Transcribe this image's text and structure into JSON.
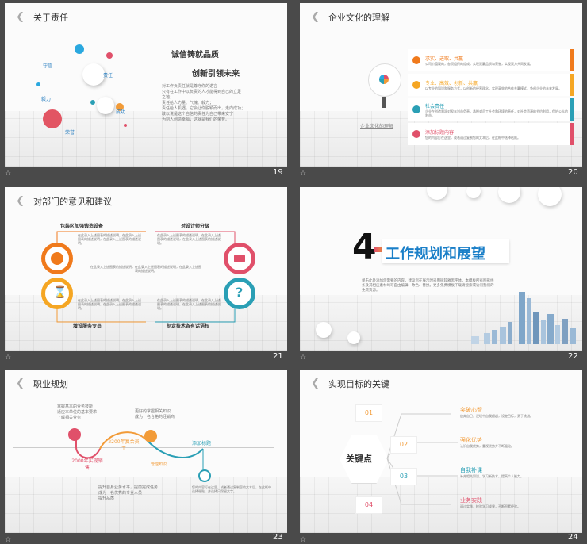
{
  "slides": {
    "s19": {
      "title": "关于责任",
      "number": "19",
      "headline1": "诚信铸就品质",
      "headline2": "创新引领未来",
      "labels": [
        "守信",
        "责任",
        "毅力",
        "成功",
        "荣誉"
      ],
      "bullets": [
        "对工作负责任就是尊守你的诺言",
        "只有在工作中以负责的人才能得到自己的立足",
        "之地；",
        "责任给人力量、气魄、毅力；",
        "责任给人机遇，它会让你脱颖而出，走向成功；",
        "敢以说是这个自信的责任为自己带来安宁",
        "为别人创造幸福，这就是我们的荣誉。"
      ]
    },
    "s20": {
      "title": "企业文化的理解",
      "num": "20",
      "caption": "企业文化的理解",
      "items": [
        {
          "head": "求实、进取、共赢",
          "body": "公司价值观的，各项组织的组成，实现双赢品质和荣誉，实现双方共同发展。"
        },
        {
          "head": "专业、高效、创新、共赢",
          "body": "以专业的知识和服务方式，以创新的经营理念，实现高效的合作共赢模式，争创企业的未来发展。"
        },
        {
          "head": "社会责任",
          "body": "企业在创造利润对股东利益负责，承担对员工社会和环境的责任，对社会资源的节约利用，保护公众的利益。"
        },
        {
          "head": "添加标题内容",
          "body": "您的内容打在这里，或者通过复制您的文本后，在此框中选择粘贴。"
        }
      ]
    },
    "s21": {
      "title": "对部门的意见和建议",
      "num": "21",
      "labels": [
        "包装区加强锻造设备",
        "对设计师分级",
        "增设服务专员",
        "制定技术各有话语权"
      ],
      "body": "在此录入上述图表的描述说明，在此录入上述图表的描述说明，在此录入上述图表的描述说明。"
    },
    "s22": {
      "big": "4",
      "title": "工作规划和展望",
      "num": "22",
      "body": "单击此处添加您需要的内容，建议您在展示时采用微软雅黑字体，本模板所有图形线条及其相应素材均可自由编辑、改色、替换。更多免费模板下载请搜索或访问我们的免费资源。"
    },
    "s23": {
      "title": "职业规划",
      "num": "23",
      "steps": [
        "2000年实现销售",
        "2200年复合员工",
        "添加标题"
      ],
      "top_list": [
        "掌握基本的业务技能",
        "适应本单位的基本要求",
        "了解相关业务"
      ],
      "mid_list": [
        "更好的掌握相关知识",
        "成为一名合格的经销商"
      ],
      "bottom_list": [
        "提升自身业务水平，提前完成任务",
        "成为一名优秀的专业人员",
        "提升品质"
      ],
      "icon_label": "管理知识",
      "right_text": "您的内容打在这里，或者通过复制您的文本后，在此框中选择粘贴，并选择只保留文字。"
    },
    "s24": {
      "title": "实现目标的关键",
      "num": "24",
      "center": "关键点",
      "items": [
        {
          "n": "01",
          "head": "突破心智",
          "body": "放弃自己，逆境中自我超越，设定目标，勇于挑战。",
          "color": "#f29b38"
        },
        {
          "n": "02",
          "head": "强化优势",
          "body": "认识自我优势，重视优势并不断强化。",
          "color": "#f29b38"
        },
        {
          "n": "03",
          "head": "自我补课",
          "body": "补充相关知识，学习新技术，提高个人能力。",
          "color": "#2a9fb5"
        },
        {
          "n": "04",
          "head": "业务实践",
          "body": "通过实践，检验学习成果，不断积累经验。",
          "color": "#e0506a"
        }
      ]
    }
  }
}
